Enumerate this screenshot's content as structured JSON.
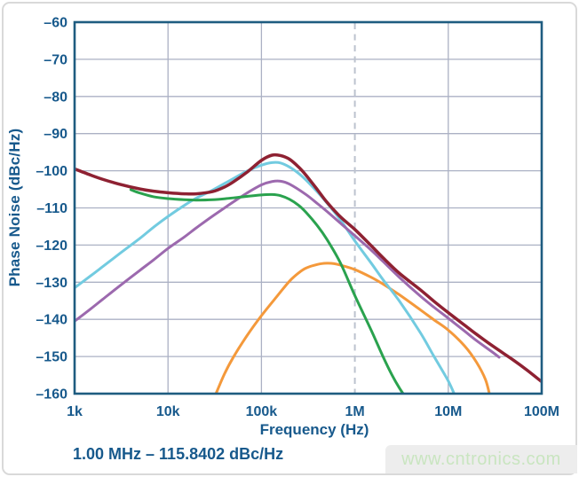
{
  "figure": {
    "xlabel": "Frequency (Hz)",
    "ylabel": "Phase Noise (dBc/Hz)",
    "annotation": "1.00 MHz – 115.8402 dBc/Hz",
    "watermark": "www.cntronics.com"
  },
  "colors": {
    "text_blue": "#17598c",
    "plot_border": "#1e5c80",
    "gridline": "#abb1c4",
    "marker_dash": "#bcc3ce",
    "watermark_text": "#c9e5c0",
    "watermark_bg": "#ededed",
    "frame_border": "#d9d9d9"
  },
  "chart_data": {
    "type": "line",
    "title": "",
    "xlabel": "Frequency (Hz)",
    "ylabel": "Phase Noise (dBc/Hz)",
    "x_scale": "log",
    "y_scale": "linear",
    "xlim": [
      1000,
      100000000
    ],
    "ylim": [
      -160,
      -60
    ],
    "grid": true,
    "legend": "none",
    "x_ticks": [
      {
        "value": 1000,
        "label": "1k"
      },
      {
        "value": 10000,
        "label": "10k"
      },
      {
        "value": 100000,
        "label": "100k"
      },
      {
        "value": 1000000,
        "label": "1M"
      },
      {
        "value": 10000000,
        "label": "10M"
      },
      {
        "value": 100000000,
        "label": "100M"
      }
    ],
    "y_ticks": [
      {
        "value": -60,
        "label": "–60"
      },
      {
        "value": -70,
        "label": "–70"
      },
      {
        "value": -80,
        "label": "–80"
      },
      {
        "value": -90,
        "label": "–90"
      },
      {
        "value": -100,
        "label": "–100"
      },
      {
        "value": -110,
        "label": "–110"
      },
      {
        "value": -120,
        "label": "–120"
      },
      {
        "value": -130,
        "label": "–130"
      },
      {
        "value": -140,
        "label": "–140"
      },
      {
        "value": -150,
        "label": "–150"
      },
      {
        "value": -160,
        "label": "–160"
      }
    ],
    "marker_line": {
      "x": 1000000,
      "style": "dashed",
      "label": "1.00 MHz – 115.8402 dBc/Hz"
    },
    "series": [
      {
        "name": "orange-curve",
        "color": "#f4993b",
        "width": 3,
        "points": [
          [
            32000,
            -160.5
          ],
          [
            40000,
            -154.8
          ],
          [
            50000,
            -150.2
          ],
          [
            70000,
            -144.4
          ],
          [
            100000,
            -139
          ],
          [
            150000,
            -133.5
          ],
          [
            200000,
            -129.7
          ],
          [
            250000,
            -127.5
          ],
          [
            300000,
            -126.2
          ],
          [
            400000,
            -125.2
          ],
          [
            500000,
            -124.9
          ],
          [
            600000,
            -125
          ],
          [
            700000,
            -125.4
          ],
          [
            1000000,
            -126.6
          ],
          [
            1500000,
            -128.7
          ],
          [
            2000000,
            -130.5
          ],
          [
            3000000,
            -133.4
          ],
          [
            5000000,
            -137.4
          ],
          [
            7000000,
            -140.1
          ],
          [
            10000000,
            -142.9
          ],
          [
            15000000,
            -147.2
          ],
          [
            20000000,
            -151.5
          ],
          [
            25000000,
            -156.2
          ],
          [
            28000000,
            -160.8
          ]
        ]
      },
      {
        "name": "cyan-curve",
        "color": "#72cbe0",
        "width": 3,
        "points": [
          [
            1000,
            -131.5
          ],
          [
            1500,
            -128.2
          ],
          [
            2000,
            -125.8
          ],
          [
            3000,
            -122.4
          ],
          [
            5000,
            -118.2
          ],
          [
            7000,
            -115.2
          ],
          [
            10000,
            -112.3
          ],
          [
            15000,
            -109.3
          ],
          [
            20000,
            -107.4
          ],
          [
            30000,
            -105.2
          ],
          [
            50000,
            -102.1
          ],
          [
            70000,
            -100.1
          ],
          [
            100000,
            -98.5
          ],
          [
            130000,
            -97.8
          ],
          [
            160000,
            -97.9
          ],
          [
            200000,
            -99
          ],
          [
            250000,
            -100.7
          ],
          [
            300000,
            -102.5
          ],
          [
            400000,
            -105.8
          ],
          [
            500000,
            -108.6
          ],
          [
            700000,
            -113.2
          ],
          [
            1000000,
            -118.9
          ],
          [
            1500000,
            -124.9
          ],
          [
            2000000,
            -129.3
          ],
          [
            3000000,
            -135.1
          ],
          [
            5000000,
            -143.5
          ],
          [
            7000000,
            -149.9
          ],
          [
            10000000,
            -156.6
          ],
          [
            12000000,
            -161
          ]
        ]
      },
      {
        "name": "purple-curve",
        "color": "#9c69ae",
        "width": 3,
        "points": [
          [
            1000,
            -140.5
          ],
          [
            1500,
            -137.1
          ],
          [
            2000,
            -134.6
          ],
          [
            3000,
            -131.1
          ],
          [
            5000,
            -126.8
          ],
          [
            7000,
            -124
          ],
          [
            10000,
            -120.9
          ],
          [
            15000,
            -117.8
          ],
          [
            20000,
            -115.4
          ],
          [
            30000,
            -112.2
          ],
          [
            50000,
            -108.4
          ],
          [
            70000,
            -106
          ],
          [
            100000,
            -103.8
          ],
          [
            130000,
            -102.9
          ],
          [
            160000,
            -102.8
          ],
          [
            200000,
            -103.6
          ],
          [
            300000,
            -106.4
          ],
          [
            400000,
            -108.9
          ],
          [
            500000,
            -110.9
          ],
          [
            700000,
            -114.1
          ],
          [
            1000000,
            -117.5
          ],
          [
            1500000,
            -121.4
          ],
          [
            2000000,
            -124.4
          ],
          [
            3000000,
            -128.7
          ],
          [
            5000000,
            -133.7
          ],
          [
            7000000,
            -136.7
          ],
          [
            10000000,
            -139.7
          ],
          [
            15000000,
            -143.2
          ],
          [
            20000000,
            -145.7
          ],
          [
            30000000,
            -148.9
          ],
          [
            35000000,
            -150.2
          ]
        ]
      },
      {
        "name": "green-curve",
        "color": "#2aa24e",
        "width": 3,
        "points": [
          [
            4000,
            -105.1
          ],
          [
            5000,
            -106
          ],
          [
            7000,
            -107
          ],
          [
            10000,
            -107.5
          ],
          [
            15000,
            -107.8
          ],
          [
            20000,
            -107.9
          ],
          [
            30000,
            -107.8
          ],
          [
            50000,
            -107.3
          ],
          [
            70000,
            -106.9
          ],
          [
            100000,
            -106.5
          ],
          [
            130000,
            -106.4
          ],
          [
            160000,
            -106.7
          ],
          [
            200000,
            -107.7
          ],
          [
            250000,
            -109.3
          ],
          [
            300000,
            -111.2
          ],
          [
            400000,
            -114.9
          ],
          [
            500000,
            -118.4
          ],
          [
            700000,
            -124.8
          ],
          [
            1000000,
            -133.6
          ],
          [
            1500000,
            -143
          ],
          [
            2000000,
            -150
          ],
          [
            2500000,
            -155
          ],
          [
            3000000,
            -158.5
          ],
          [
            3500000,
            -161
          ]
        ]
      },
      {
        "name": "dark-red-curve",
        "color": "#8e2132",
        "width": 3.5,
        "points": [
          [
            1000,
            -99.5
          ],
          [
            1500,
            -101.2
          ],
          [
            2000,
            -102.3
          ],
          [
            3000,
            -103.6
          ],
          [
            5000,
            -104.9
          ],
          [
            7000,
            -105.5
          ],
          [
            10000,
            -105.9
          ],
          [
            15000,
            -106.2
          ],
          [
            20000,
            -106.2
          ],
          [
            30000,
            -105.6
          ],
          [
            40000,
            -104.4
          ],
          [
            50000,
            -103
          ],
          [
            70000,
            -100.4
          ],
          [
            100000,
            -97.2
          ],
          [
            130000,
            -95.8
          ],
          [
            160000,
            -95.9
          ],
          [
            200000,
            -96.9
          ],
          [
            250000,
            -99
          ],
          [
            300000,
            -101.2
          ],
          [
            400000,
            -105.2
          ],
          [
            500000,
            -108.4
          ],
          [
            700000,
            -112.4
          ],
          [
            1000000,
            -115.8
          ],
          [
            1500000,
            -120.2
          ],
          [
            2000000,
            -123.4
          ],
          [
            3000000,
            -127.6
          ],
          [
            5000000,
            -132
          ],
          [
            7000000,
            -135.1
          ],
          [
            10000000,
            -138.2
          ],
          [
            15000000,
            -141.6
          ],
          [
            20000000,
            -144
          ],
          [
            30000000,
            -147.2
          ],
          [
            50000000,
            -151
          ],
          [
            70000000,
            -153.7
          ],
          [
            100000000,
            -156.8
          ]
        ]
      }
    ]
  }
}
